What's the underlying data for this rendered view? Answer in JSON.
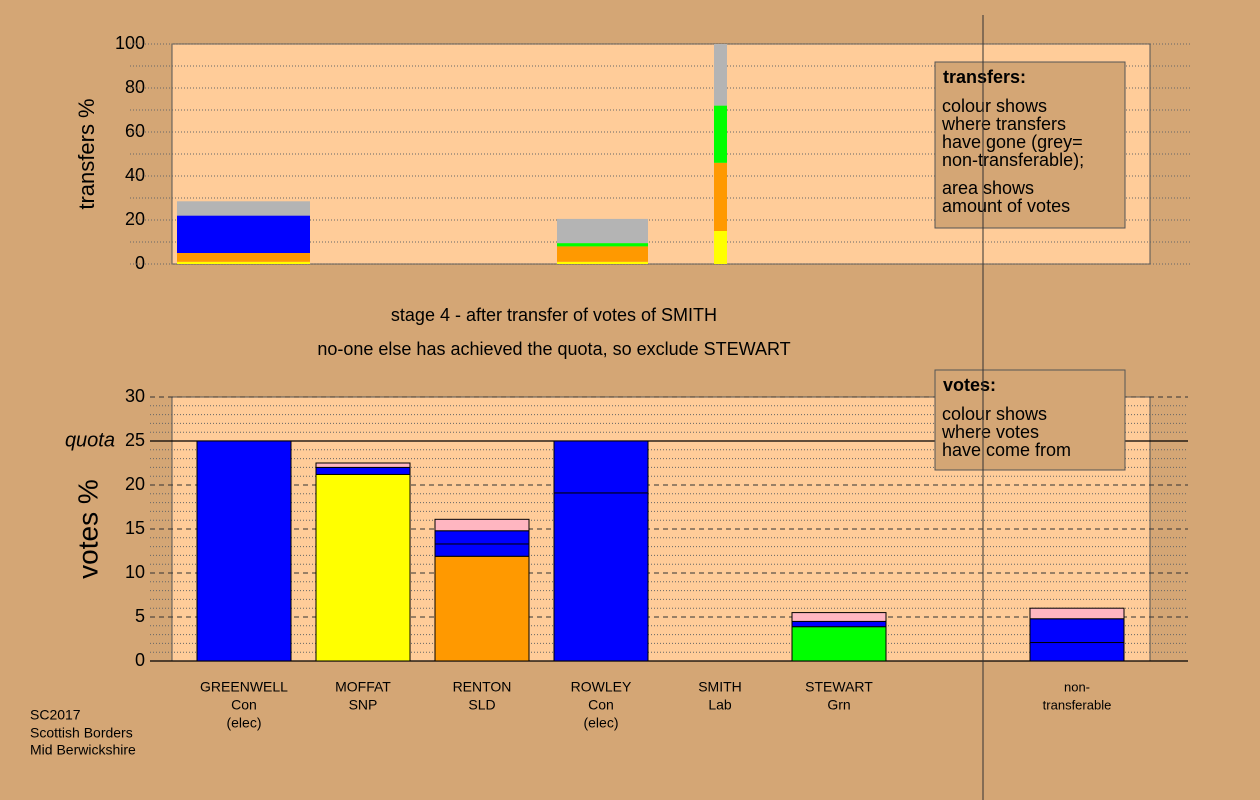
{
  "chart_data": [
    {
      "type": "bar",
      "y_label": "transfers %",
      "ylim": [
        0,
        100
      ],
      "yticks": [
        0,
        20,
        40,
        60,
        80,
        100
      ],
      "minor_yticks": [
        10,
        30,
        50,
        70,
        90
      ],
      "grid": true,
      "bars": [
        {
          "segments": [
            {
              "value": 1,
              "color": "#ffff00"
            },
            {
              "value": 4,
              "color": "#ff9900"
            },
            {
              "value": 17,
              "color": "#0000ff"
            },
            {
              "value": 6.5,
              "color": "#b4b4b4"
            }
          ]
        },
        {
          "segments": [
            {
              "value": 1,
              "color": "#ffff00"
            },
            {
              "value": 7,
              "color": "#ff9900"
            },
            {
              "value": 1.5,
              "color": "#00ff00"
            },
            {
              "value": 11,
              "color": "#b4b4b4"
            }
          ]
        },
        {
          "segments": [
            {
              "value": 15,
              "color": "#ffff00"
            },
            {
              "value": 31,
              "color": "#ff9900"
            },
            {
              "value": 26,
              "color": "#00ff00"
            },
            {
              "value": 28,
              "color": "#b4b4b4"
            }
          ]
        }
      ],
      "note": {
        "title": "transfers:",
        "lines": [
          "colour shows",
          "where transfers",
          "have gone (grey=",
          "non-transferable);",
          "area shows",
          "amount of votes"
        ]
      }
    },
    {
      "type": "bar",
      "y_label": "votes %",
      "ylim": [
        0,
        30
      ],
      "yticks": [
        0,
        5,
        10,
        15,
        20,
        25,
        30
      ],
      "quota": 25,
      "quota_label": "quota",
      "minor_yticks": [
        1,
        2,
        3,
        4,
        6,
        7,
        8,
        9,
        11,
        12,
        13,
        14,
        16,
        17,
        18,
        19,
        21,
        22,
        23,
        24,
        26,
        27,
        28,
        29
      ],
      "grid": true,
      "bars": [
        {
          "label": [
            "GREENWELL",
            "Con",
            "(elec)"
          ],
          "segments": [
            {
              "value": 25,
              "color": "#0000ff"
            }
          ]
        },
        {
          "label": [
            "MOFFAT",
            "SNP"
          ],
          "segments": [
            {
              "value": 21.2,
              "color": "#ffff00"
            },
            {
              "value": 0.8,
              "color": "#0000ff"
            },
            {
              "value": 0.5,
              "color": "#ffb6c1"
            }
          ]
        },
        {
          "label": [
            "RENTON",
            "SLD"
          ],
          "segments": [
            {
              "value": 11.9,
              "color": "#ff9900"
            },
            {
              "value": 1.4,
              "color": "#0000ff"
            },
            {
              "value": 1.5,
              "color": "#0000ff"
            },
            {
              "value": 1.3,
              "color": "#ffb6c1"
            }
          ]
        },
        {
          "label": [
            "ROWLEY",
            "Con",
            "(elec)"
          ],
          "segments": [
            {
              "value": 19.1,
              "color": "#0000ff"
            },
            {
              "value": 5.9,
              "color": "#0000ff"
            }
          ]
        },
        {
          "label": [
            "SMITH",
            "Lab"
          ],
          "segments": [
            {
              "value": 0,
              "color": "#0000ff"
            }
          ]
        },
        {
          "label": [
            "STEWART",
            "Grn"
          ],
          "segments": [
            {
              "value": 3.9,
              "color": "#00ff00"
            },
            {
              "value": 0.6,
              "color": "#0000ff"
            },
            {
              "value": 1.0,
              "color": "#ffb6c1"
            }
          ]
        },
        {
          "label": [
            "non-",
            "transferable"
          ],
          "segments": [
            {
              "value": 2.1,
              "color": "#0000ff"
            },
            {
              "value": 2.7,
              "color": "#0000ff"
            },
            {
              "value": 1.2,
              "color": "#ffb6c1"
            }
          ]
        }
      ],
      "note": {
        "title": "votes:",
        "lines": [
          "colour shows",
          "where votes",
          "have come from"
        ]
      }
    }
  ],
  "captions": [
    "stage 4 - after transfer of votes of SMITH",
    "no-one else has achieved the quota, so exclude STEWART"
  ],
  "footer": [
    "SC2017",
    "Scottish Borders",
    "Mid Berwickshire"
  ]
}
